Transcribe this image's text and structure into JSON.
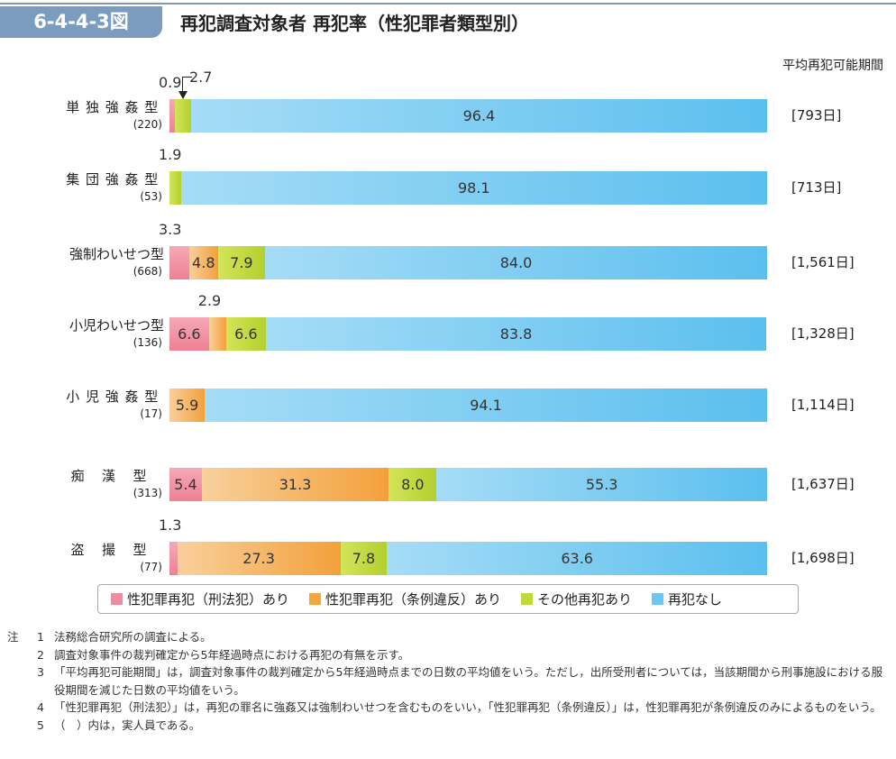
{
  "header": {
    "figure_number": "6-4-4-3図",
    "title": "再犯調査対象者 再犯率（性犯罪者類型別）"
  },
  "days_header": "平均再犯可能期間",
  "chart_data": {
    "type": "bar",
    "orientation": "horizontal",
    "stacked": true,
    "xlim": [
      0,
      100
    ],
    "unit": "%",
    "categories": [
      "単独強姦型",
      "集団強姦型",
      "強制わいせつ型",
      "小児わいせつ型",
      "小児強姦型",
      "痴漢型",
      "盗撮型"
    ],
    "counts": [
      "(220)",
      "(53)",
      "(668)",
      "(136)",
      "(17)",
      "(313)",
      "(77)"
    ],
    "days": [
      "[793日]",
      "[713日]",
      "[1,561日]",
      "[1,328日]",
      "[1,114日]",
      "[1,637日]",
      "[1,698日]"
    ],
    "series": [
      {
        "name": "性犯罪再犯（刑法犯）あり",
        "color": "#f08c9c",
        "values": [
          0.9,
          0,
          3.3,
          6.6,
          0,
          5.4,
          1.3
        ]
      },
      {
        "name": "性犯罪再犯（条例違反）あり",
        "color": "#f4a640",
        "values": [
          0,
          0,
          4.8,
          2.9,
          5.9,
          31.3,
          27.3
        ]
      },
      {
        "name": "その他再犯あり",
        "color": "#bfd83a",
        "values": [
          2.7,
          1.9,
          7.9,
          6.6,
          0,
          8.0,
          7.8
        ]
      },
      {
        "name": "再犯なし",
        "color": "#6cc6f0",
        "values": [
          96.4,
          98.1,
          84.0,
          83.8,
          94.1,
          55.3,
          63.6
        ]
      }
    ],
    "legend": "bottom"
  },
  "notes": [
    {
      "k": "注",
      "n": "1",
      "t": "法務総合研究所の調査による。"
    },
    {
      "k": "",
      "n": "2",
      "t": "調査対象事件の裁判確定から5年経過時点における再犯の有無を示す。"
    },
    {
      "k": "",
      "n": "3",
      "t": "「平均再犯可能期間」は，調査対象事件の裁判確定から5年経過時点までの日数の平均値をいう。ただし，出所受刑者については，当該期間から刑事施設における服役期間を減じた日数の平均値をいう。"
    },
    {
      "k": "",
      "n": "4",
      "t": "「性犯罪再犯（刑法犯）」は，再犯の罪名に強姦又は強制わいせつを含むものをいい，「性犯罪再犯（条例違反）」は，性犯罪再犯が条例違反のみによるものをいう。"
    },
    {
      "k": "",
      "n": "5",
      "t": "（　）内は，実人員である。"
    }
  ]
}
